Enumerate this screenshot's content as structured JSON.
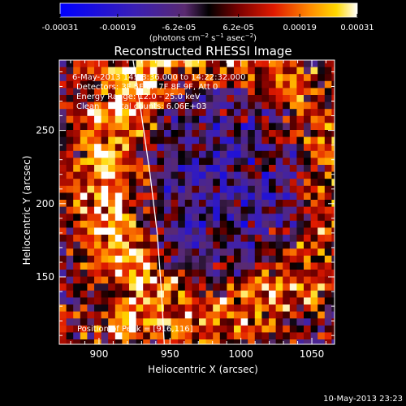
{
  "chart_data": {
    "type": "heatmap",
    "title": "Reconstructed RHESSI Image",
    "xlabel": "Heliocentric X (arcsec)",
    "ylabel": "Heliocentric Y (arcsec)",
    "xlim": [
      872,
      1066
    ],
    "ylim": [
      104,
      298
    ],
    "x_ticks": [
      900,
      950,
      1000,
      1050
    ],
    "y_ticks": [
      150,
      200,
      250
    ],
    "colorbar": {
      "ticks": [
        "-0.00031",
        "-0.00019",
        "-6.2e-05",
        "6.2e-05",
        "0.00019",
        "0.00031"
      ],
      "tick_values": [
        -0.00031,
        -0.00019,
        -6.2e-05,
        6.2e-05,
        0.00019,
        0.00031
      ],
      "unit_label": "(photons cm",
      "unit_exp1": "−2",
      "unit_mid": " s",
      "unit_exp2": "−1",
      "unit_mid2": " asec",
      "unit_exp3": "−2",
      "unit_end": ")"
    },
    "annotations": [
      "6-May-2013 14:18:36.000 to 14:22:32.000",
      "Detectors: 3F 5F 6F 7F 8F 9F, Att 0",
      "Energy Range: 12.0 - 25.0 keV",
      "Clean     Total counts: 6.06E+03"
    ],
    "peak_label": "Position of Peak = [916,116]",
    "peak": [
      916,
      116
    ],
    "limb_curve": [
      [
        924,
        298
      ],
      [
        930,
        260
      ],
      [
        936,
        220
      ],
      [
        941,
        180
      ],
      [
        944,
        140
      ],
      [
        946,
        104
      ]
    ],
    "footer": "10-May-2013 23:23",
    "colors": {
      "background": "#000000",
      "text": "#ffffff"
    }
  }
}
